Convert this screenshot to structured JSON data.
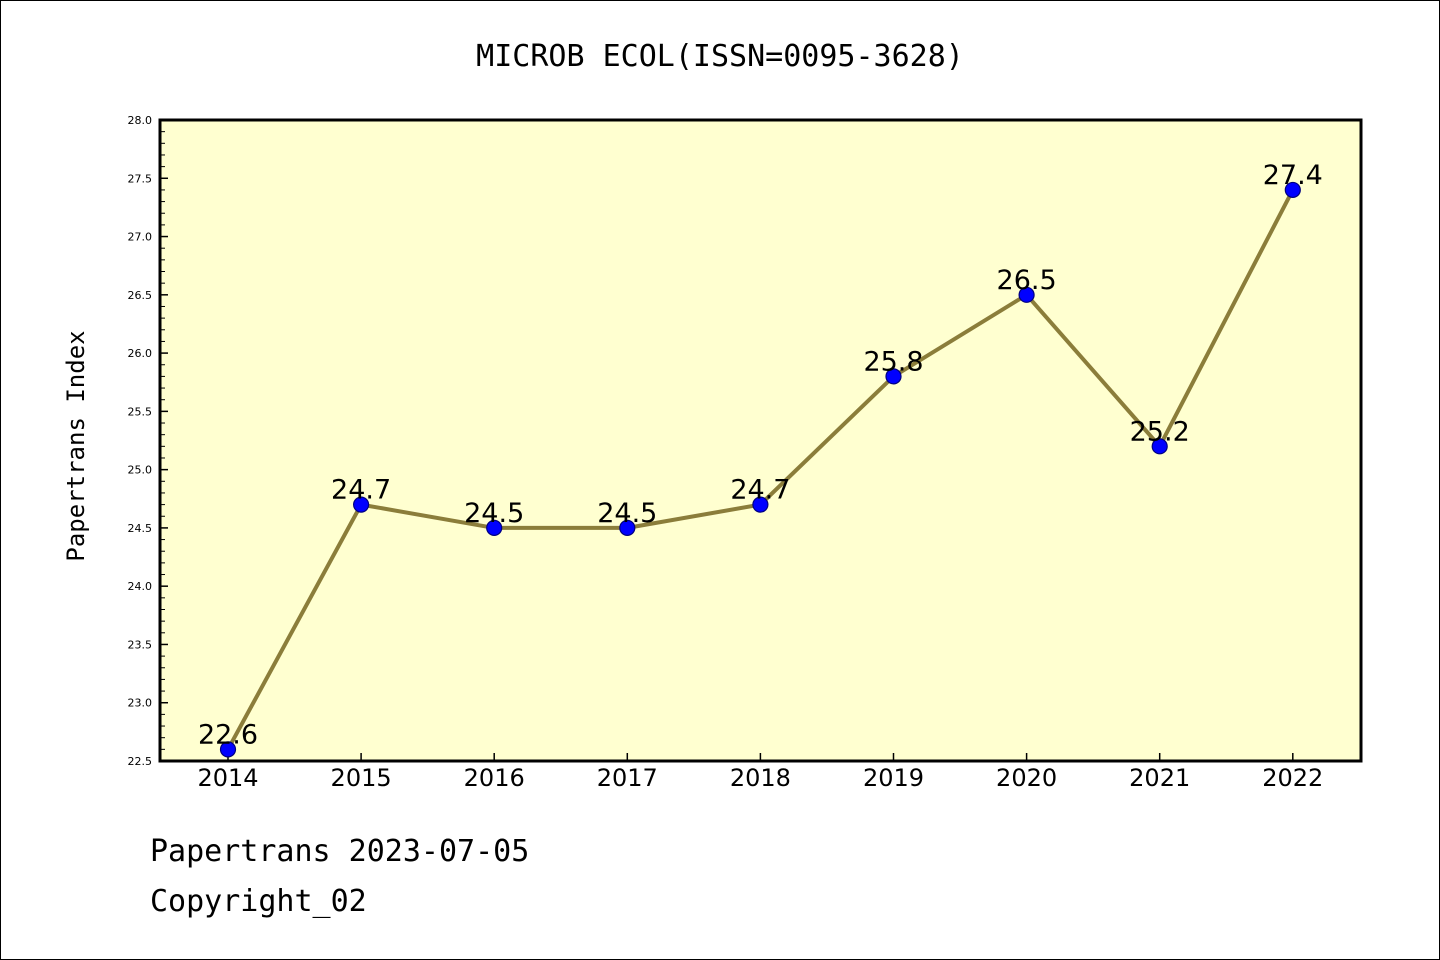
{
  "chart_data": {
    "type": "line",
    "title": "MICROB ECOL(ISSN=0095-3628)",
    "xlabel": "",
    "ylabel": "Papertrans Index",
    "categories": [
      "2014",
      "2015",
      "2016",
      "2017",
      "2018",
      "2019",
      "2020",
      "2021",
      "2022"
    ],
    "series": [
      {
        "values": [
          22.6,
          24.7,
          24.5,
          24.5,
          24.7,
          25.8,
          26.5,
          25.2,
          27.4
        ]
      }
    ],
    "data_labels": [
      "22.6",
      "24.7",
      "24.5",
      "24.5",
      "24.7",
      "25.8",
      "26.5",
      "25.2",
      "27.4"
    ],
    "ylim": [
      22.5,
      28.0
    ],
    "yticks": [
      "22.5",
      "23.0",
      "23.5",
      "24.0",
      "24.5",
      "25.0",
      "25.5",
      "26.0",
      "26.5",
      "27.0",
      "27.5",
      "28.0"
    ],
    "grid": false,
    "legend": "none",
    "colors": {
      "plot_background": "#ffffd0",
      "line": "#8b7d3a",
      "marker_fill": "#0000ff",
      "marker_edge": "#000080",
      "axes": "#000000"
    }
  },
  "footer": {
    "date_text": "Papertrans 2023-07-05",
    "copyright_text": "Copyright_02"
  }
}
